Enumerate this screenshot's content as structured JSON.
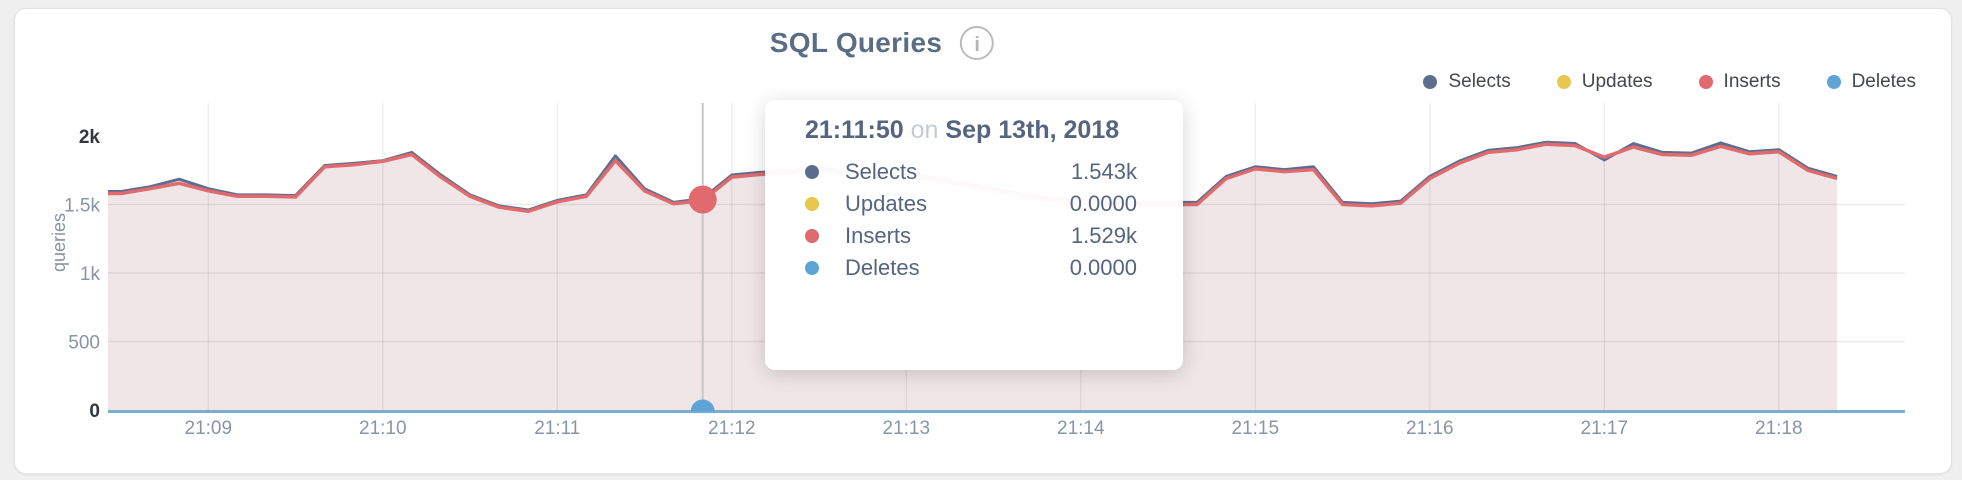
{
  "card": {
    "title": "SQL Queries",
    "info_icon": "i"
  },
  "legend": {
    "items": [
      {
        "label": "Selects",
        "color": "#5d6e8d"
      },
      {
        "label": "Updates",
        "color": "#e9c64d"
      },
      {
        "label": "Inserts",
        "color": "#e06a6e"
      },
      {
        "label": "Deletes",
        "color": "#5ea4d6"
      }
    ]
  },
  "axes": {
    "y_title": "queries",
    "y_ticks": [
      {
        "label": "2k",
        "value": 2000,
        "emph": true
      },
      {
        "label": "1.5k",
        "value": 1500,
        "emph": false
      },
      {
        "label": "1k",
        "value": 1000,
        "emph": false
      },
      {
        "label": "500",
        "value": 500,
        "emph": false
      },
      {
        "label": "0",
        "value": 0,
        "emph": true
      }
    ],
    "x_ticks": [
      {
        "label": "21:09"
      },
      {
        "label": "21:10"
      },
      {
        "label": "21:11"
      },
      {
        "label": "21:12"
      },
      {
        "label": "21:13"
      },
      {
        "label": "21:14"
      },
      {
        "label": "21:15"
      },
      {
        "label": "21:16"
      },
      {
        "label": "21:17"
      },
      {
        "label": "21:18"
      }
    ]
  },
  "tooltip": {
    "time": "21:11:50",
    "connector": "on",
    "date": "Sep 13th, 2018",
    "rows": [
      {
        "label": "Selects",
        "value": "1.543k",
        "color": "#5d6e8d"
      },
      {
        "label": "Updates",
        "value": "0.0000",
        "color": "#e9c64d"
      },
      {
        "label": "Inserts",
        "value": "1.529k",
        "color": "#e06a6e"
      },
      {
        "label": "Deletes",
        "value": "0.0000",
        "color": "#5ea4d6"
      }
    ]
  },
  "chart_data": {
    "type": "area",
    "title": "SQL Queries",
    "ylabel": "queries",
    "ylim": [
      0,
      2000
    ],
    "grid": true,
    "legend_position": "top-right",
    "hover": {
      "time": "21:11:50",
      "index": 20
    },
    "x": [
      "21:08:30",
      "21:08:40",
      "21:08:50",
      "21:09:00",
      "21:09:10",
      "21:09:20",
      "21:09:30",
      "21:09:40",
      "21:09:50",
      "21:10:00",
      "21:10:10",
      "21:10:20",
      "21:10:30",
      "21:10:40",
      "21:10:50",
      "21:11:00",
      "21:11:10",
      "21:11:20",
      "21:11:30",
      "21:11:40",
      "21:11:50",
      "21:12:00",
      "21:12:10",
      "21:12:20",
      "21:12:30",
      "21:12:40",
      "21:12:50",
      "21:13:00",
      "21:13:10",
      "21:13:20",
      "21:13:30",
      "21:13:40",
      "21:13:50",
      "21:14:00",
      "21:14:10",
      "21:14:20",
      "21:14:30",
      "21:14:40",
      "21:14:50",
      "21:15:00",
      "21:15:10",
      "21:15:20",
      "21:15:30",
      "21:15:40",
      "21:15:50",
      "21:16:00",
      "21:16:10",
      "21:16:20",
      "21:16:30",
      "21:16:40",
      "21:16:50",
      "21:17:00",
      "21:17:10",
      "21:17:20",
      "21:17:30",
      "21:17:40",
      "21:17:50",
      "21:18:00",
      "21:18:10",
      "21:18:20"
    ],
    "series": [
      {
        "name": "Selects",
        "color": "#5d6e8d",
        "values": [
          1595,
          1630,
          1685,
          1615,
          1570,
          1570,
          1565,
          1785,
          1800,
          1820,
          1880,
          1715,
          1570,
          1490,
          1460,
          1530,
          1570,
          1855,
          1615,
          1515,
          1543,
          1715,
          1735,
          1745,
          1775,
          1735,
          1715,
          1735,
          1695,
          1655,
          1615,
          1575,
          1545,
          1525,
          1515,
          1515,
          1515,
          1515,
          1705,
          1775,
          1755,
          1775,
          1515,
          1505,
          1525,
          1705,
          1815,
          1895,
          1915,
          1955,
          1945,
          1825,
          1945,
          1880,
          1875,
          1950,
          1885,
          1900,
          1765,
          1705
        ]
      },
      {
        "name": "Updates",
        "color": "#e9c64d",
        "values": [
          0,
          0,
          0,
          0,
          0,
          0,
          0,
          0,
          0,
          0,
          0,
          0,
          0,
          0,
          0,
          0,
          0,
          0,
          0,
          0,
          0,
          0,
          0,
          0,
          0,
          0,
          0,
          0,
          0,
          0,
          0,
          0,
          0,
          0,
          0,
          0,
          0,
          0,
          0,
          0,
          0,
          0,
          0,
          0,
          0,
          0,
          0,
          0,
          0,
          0,
          0,
          0,
          0,
          0,
          0,
          0,
          0,
          0,
          0,
          0
        ]
      },
      {
        "name": "Inserts",
        "color": "#e06a6e",
        "values": [
          1580,
          1615,
          1655,
          1600,
          1560,
          1560,
          1555,
          1775,
          1790,
          1815,
          1865,
          1700,
          1560,
          1480,
          1450,
          1520,
          1560,
          1820,
          1600,
          1505,
          1529,
          1700,
          1720,
          1730,
          1760,
          1720,
          1700,
          1720,
          1680,
          1640,
          1600,
          1560,
          1530,
          1510,
          1500,
          1500,
          1500,
          1500,
          1690,
          1760,
          1740,
          1755,
          1500,
          1490,
          1510,
          1690,
          1800,
          1880,
          1900,
          1940,
          1930,
          1845,
          1920,
          1865,
          1860,
          1925,
          1870,
          1885,
          1750,
          1690
        ]
      },
      {
        "name": "Deletes",
        "color": "#5ea4d6",
        "values": [
          0,
          0,
          0,
          0,
          0,
          0,
          0,
          0,
          0,
          0,
          0,
          0,
          0,
          0,
          0,
          0,
          0,
          0,
          0,
          0,
          0,
          0,
          0,
          0,
          0,
          0,
          0,
          0,
          0,
          0,
          0,
          0,
          0,
          0,
          0,
          0,
          0,
          0,
          0,
          0,
          0,
          0,
          0,
          0,
          0,
          0,
          0,
          0,
          0,
          0,
          0,
          0,
          0,
          0,
          0,
          0,
          0,
          0,
          0,
          0
        ]
      }
    ]
  }
}
